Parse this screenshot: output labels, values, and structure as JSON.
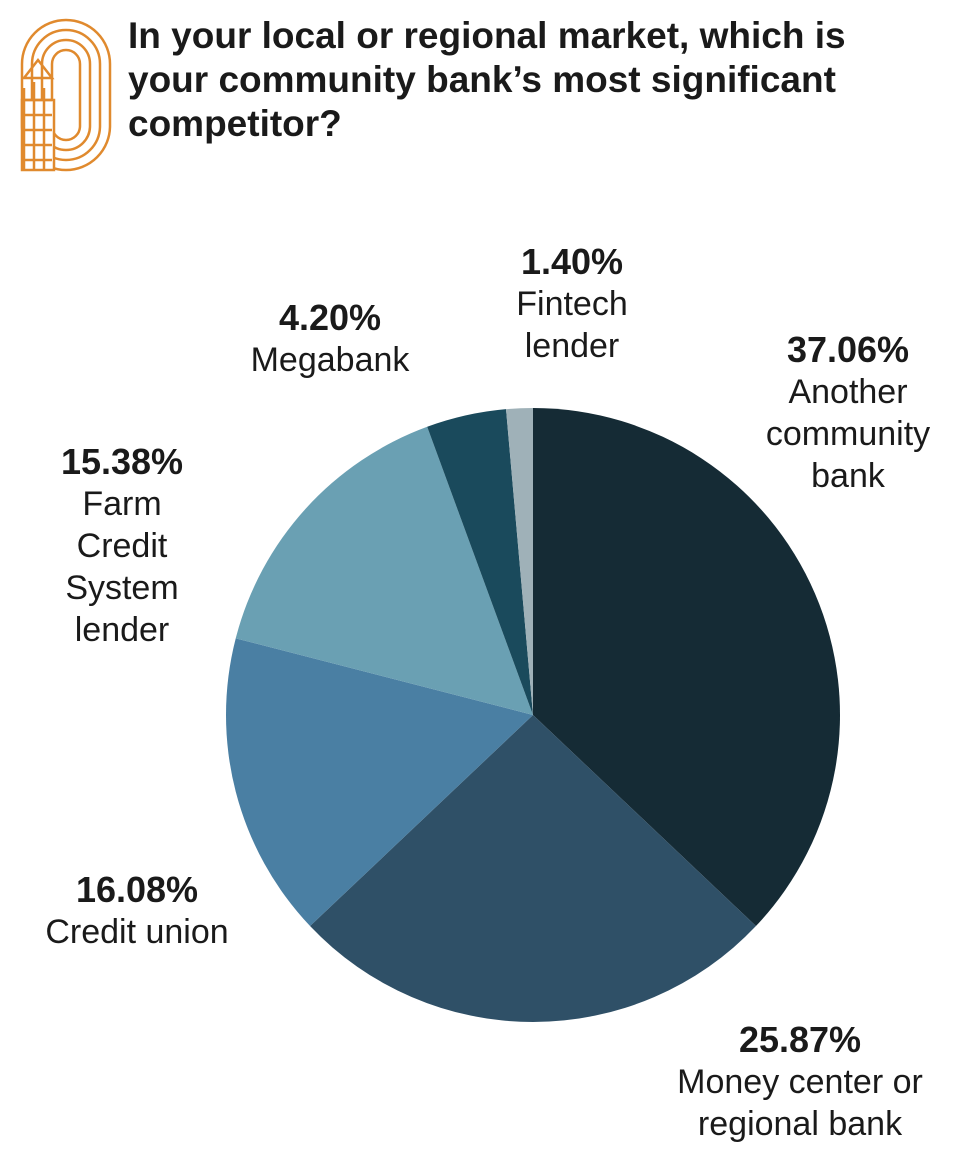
{
  "chart_data": {
    "type": "pie",
    "title": "In your local or regional market, which is your community bank’s most significant competitor?",
    "categories": [
      "Another community bank",
      "Money center or regional bank",
      "Credit union",
      "Farm Credit System lender",
      "Megabank",
      "Fintech lender"
    ],
    "values": [
      37.06,
      25.87,
      16.08,
      15.38,
      4.2,
      1.4
    ],
    "value_labels": [
      "37.06%",
      "25.87%",
      "16.08%",
      "15.38%",
      "4.20%",
      "1.40%"
    ],
    "colors": [
      "#152b35",
      "#2f5067",
      "#4a7fa3",
      "#6aa0b3",
      "#1a4a5c",
      "#9fb1b8"
    ]
  }
}
